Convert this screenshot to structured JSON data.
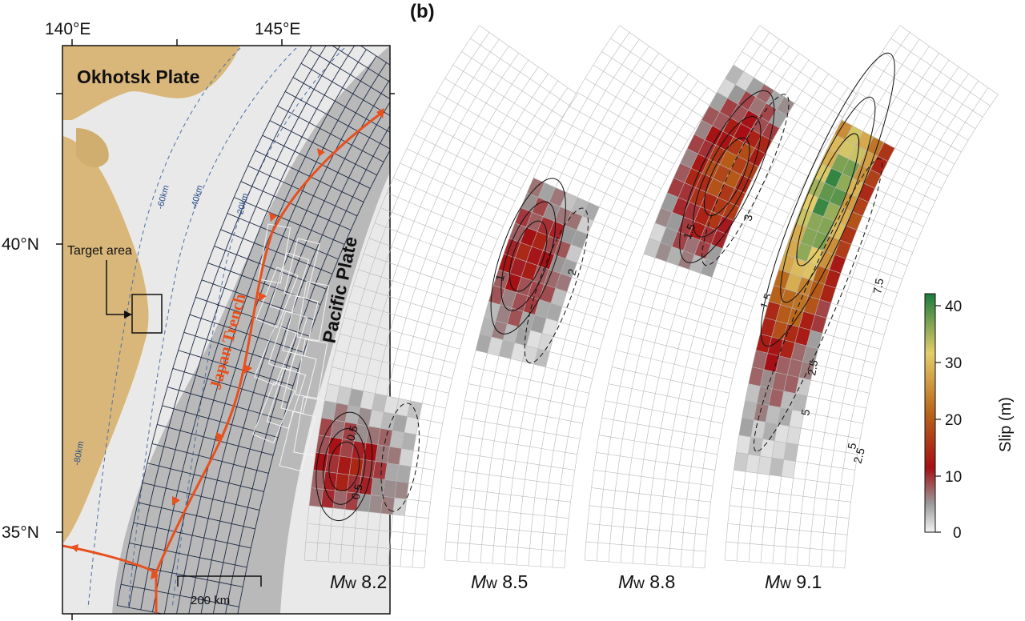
{
  "panel_b_label": "(b)",
  "map": {
    "lon_ticks": [
      "140°E",
      "145°E"
    ],
    "lat_ticks": [
      "40°N",
      "35°N"
    ],
    "okhotsk_label": "Okhotsk Plate",
    "pacific_label": "Pacific Plate",
    "trench_label": "Japan Trench",
    "target_label": "Target area",
    "depth_contours": [
      "-60km",
      "-40km",
      "-20km",
      "-80km"
    ],
    "scale_bar": "200 km",
    "colors": {
      "land": "#d9b77a",
      "ocean": "#bdbdbd",
      "trench": "#e8501e",
      "contour": "#4a6fa5"
    }
  },
  "scenarios": [
    {
      "mw_prefix": "M",
      "mw_suffix": "w",
      "mw_value": "8.2",
      "contour_labels": [
        "0.5",
        "0.5"
      ]
    },
    {
      "mw_prefix": "M",
      "mw_suffix": "w",
      "mw_value": "8.5",
      "contour_labels": [
        "1",
        "2"
      ]
    },
    {
      "mw_prefix": "M",
      "mw_suffix": "w",
      "mw_value": "8.8",
      "contour_labels": [
        "1.5",
        "3",
        "1.5"
      ]
    },
    {
      "mw_prefix": "M",
      "mw_suffix": "w",
      "mw_value": "9.1",
      "contour_labels": [
        "5",
        "2.5",
        "7.5",
        "5",
        "2.5"
      ]
    }
  ],
  "colorbar": {
    "label": "Slip (m)",
    "ticks": [
      "0",
      "10",
      "20",
      "30",
      "40"
    ],
    "range": [
      0,
      40
    ],
    "stops": [
      "#f2f2f2",
      "#9a9a9a",
      "#a50f15",
      "#b8651a",
      "#e4cd6a",
      "#1b7a3c"
    ]
  }
}
